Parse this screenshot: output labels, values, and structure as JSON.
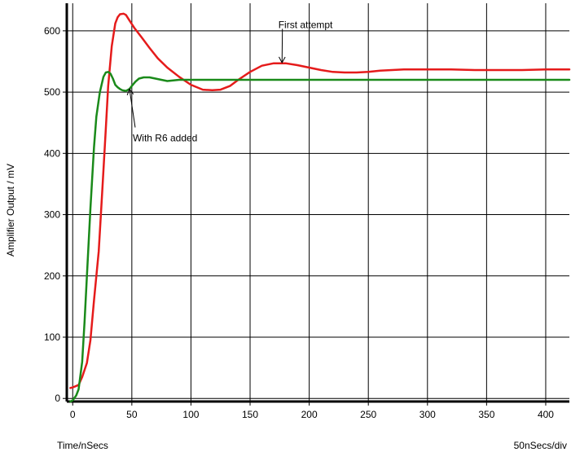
{
  "chart_data": {
    "type": "line",
    "title": "",
    "xlabel": "Time/nSecs",
    "ylabel": "Amplifier Output / mV",
    "scale_note": "50nSecs/div",
    "xlim": [
      -5,
      420
    ],
    "ylim": [
      -5,
      645
    ],
    "grid": true,
    "x_ticks": [
      0,
      50,
      100,
      150,
      200,
      250,
      300,
      350,
      400
    ],
    "y_ticks": [
      0,
      100,
      200,
      300,
      400,
      500,
      600
    ],
    "series": [
      {
        "color": "#e51b1b",
        "x": [
          -2,
          0,
          5,
          8,
          12,
          15,
          18,
          22,
          25,
          28,
          30,
          33,
          36,
          38,
          40,
          43,
          45,
          48,
          52,
          58,
          65,
          72,
          80,
          90,
          100,
          110,
          118,
          125,
          133,
          140,
          150,
          160,
          170,
          180,
          190,
          200,
          210,
          220,
          230,
          240,
          250,
          260,
          280,
          300,
          320,
          340,
          360,
          380,
          400,
          420
        ],
        "y": [
          17,
          18,
          22,
          35,
          58,
          95,
          160,
          240,
          340,
          440,
          510,
          575,
          612,
          622,
          627,
          628,
          626,
          617,
          605,
          590,
          572,
          555,
          540,
          525,
          512,
          504,
          503,
          504,
          510,
          520,
          533,
          543,
          547,
          547,
          544,
          540,
          536,
          533,
          532,
          532,
          533,
          535,
          537,
          537,
          537,
          536,
          536,
          536,
          537,
          537
        ]
      },
      {
        "color": "#1a8a1a",
        "x": [
          -2,
          0,
          3,
          5,
          8,
          10,
          12,
          15,
          18,
          20,
          23,
          26,
          28,
          30,
          32,
          34,
          36,
          38,
          40,
          42,
          45,
          48,
          50,
          53,
          56,
          60,
          65,
          70,
          75,
          80,
          85,
          90,
          100,
          120,
          150,
          200,
          250,
          300,
          350,
          400,
          420
        ],
        "y": [
          -5,
          -3,
          5,
          15,
          60,
          125,
          200,
          310,
          410,
          460,
          500,
          525,
          532,
          533,
          530,
          522,
          512,
          508,
          505,
          503,
          502,
          505,
          510,
          517,
          522,
          524,
          524,
          522,
          520,
          518,
          519,
          520,
          520,
          520,
          520,
          520,
          520,
          520,
          520,
          520,
          520
        ]
      }
    ],
    "annotations": [
      {
        "text": "First attempt",
        "point_x": 177,
        "point_y": 548,
        "label_x": 198,
        "label_y": 610
      },
      {
        "text": "With R6 added",
        "point_x": 48,
        "point_y": 505,
        "label_x": 68,
        "label_y": 425
      }
    ]
  }
}
